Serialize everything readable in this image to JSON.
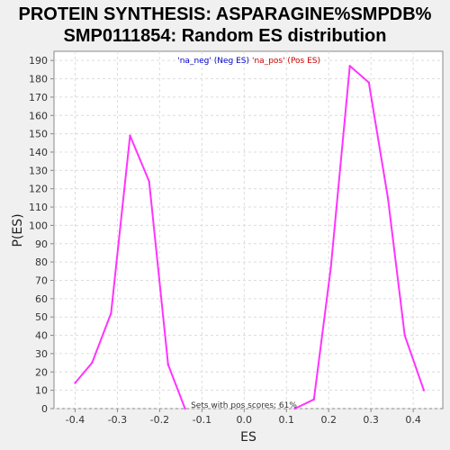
{
  "chart_data": {
    "type": "line",
    "title_line1": "PROTEIN SYNTHESIS: ASPARAGINE%SMPDB%",
    "title_line2": "SMP0111854: Random ES distribution",
    "xlabel": "ES",
    "ylabel": "P(ES)",
    "xlim": [
      -0.45,
      0.47
    ],
    "ylim": [
      0,
      195
    ],
    "xticks": [
      -0.4,
      -0.3,
      -0.2,
      -0.1,
      0.0,
      0.1,
      0.2,
      0.3,
      0.4
    ],
    "xtick_labels": [
      "-0.4",
      "-0.3",
      "-0.2",
      "-0.1",
      "0.0",
      "0.1",
      "0.2",
      "0.3",
      "0.4"
    ],
    "yticks": [
      0,
      10,
      20,
      30,
      40,
      50,
      60,
      70,
      80,
      90,
      100,
      110,
      120,
      130,
      140,
      150,
      160,
      170,
      180,
      190
    ],
    "ytick_labels": [
      "0",
      "10",
      "20",
      "30",
      "40",
      "50",
      "60",
      "70",
      "80",
      "90",
      "100",
      "110",
      "120",
      "130",
      "140",
      "150",
      "160",
      "170",
      "180",
      "190"
    ],
    "grid": true,
    "legend_position": "top-center",
    "legend": [
      {
        "text": "'na_neg' (Neg ES)",
        "color": "#0000cc"
      },
      {
        "text": "'na_pos' (Pos ES)",
        "color": "#cc0000"
      }
    ],
    "annotation": "Sets with pos scores: 61%",
    "series": [
      {
        "color": "#ff33ff",
        "x": [
          -0.4,
          -0.36,
          -0.315,
          -0.27,
          -0.225,
          -0.18,
          -0.14
        ],
        "y": [
          14,
          25,
          52,
          149,
          124,
          24,
          0
        ]
      },
      {
        "color": "#ff33ff",
        "x": [
          0.12,
          0.165,
          0.205,
          0.25,
          0.295,
          0.34,
          0.38,
          0.425
        ],
        "y": [
          0,
          5,
          77,
          187,
          178,
          115,
          40,
          10
        ]
      }
    ],
    "colors": {
      "background": "#f0f0f0",
      "plot_background": "#ffffff",
      "grid": "#dcdcdc",
      "axis": "#888888"
    }
  }
}
